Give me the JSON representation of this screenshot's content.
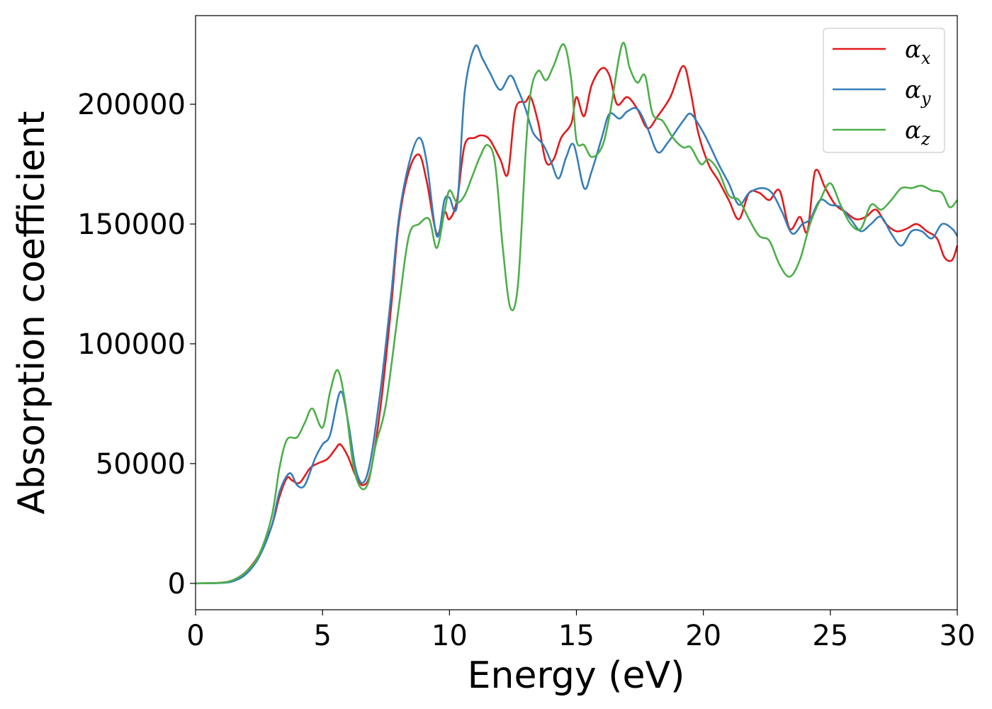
{
  "chart_data": {
    "type": "line",
    "title": "",
    "xlabel": "Energy (eV)",
    "ylabel": "Absorption coefficient",
    "xlim": [
      0,
      30
    ],
    "ylim": [
      -11000,
      237000
    ],
    "xticks": [
      0,
      5,
      10,
      15,
      20,
      25,
      30
    ],
    "xtick_labels": [
      "0",
      "5",
      "10",
      "15",
      "20",
      "25",
      "30"
    ],
    "yticks": [
      0,
      50000,
      100000,
      150000,
      200000
    ],
    "ytick_labels": [
      "0",
      "50000",
      "100000",
      "150000",
      "200000"
    ],
    "grid": false,
    "legend_position": "top-right",
    "series": [
      {
        "name": "αx",
        "legend_base": "α",
        "legend_sub": "x",
        "color": "#e41a1c",
        "x": [
          0,
          1,
          1.5,
          2,
          2.5,
          3,
          3.3,
          3.6,
          3.8,
          4.1,
          4.5,
          4.8,
          5.2,
          5.5,
          5.7,
          6,
          6.3,
          6.6,
          6.9,
          7.3,
          7.7,
          8,
          8.4,
          8.8,
          9.1,
          9.5,
          9.8,
          10,
          10.3,
          10.6,
          11,
          11.3,
          11.6,
          12,
          12.3,
          12.6,
          13,
          13.2,
          13.5,
          13.8,
          14.1,
          14.4,
          14.8,
          15,
          15.3,
          15.6,
          16,
          16.3,
          16.6,
          17,
          17.4,
          17.8,
          18.2,
          18.7,
          19.2,
          19.5,
          19.8,
          20.2,
          20.6,
          21,
          21.4,
          21.8,
          22.2,
          22.6,
          23,
          23.4,
          23.8,
          24.1,
          24.4,
          24.8,
          25.2,
          25.6,
          26,
          26.4,
          26.8,
          27.2,
          27.6,
          28,
          28.4,
          28.8,
          29.2,
          29.5,
          29.8,
          30
        ],
        "y": [
          0,
          300,
          1500,
          5000,
          12000,
          24000,
          36000,
          44000,
          43000,
          42000,
          48000,
          50000,
          52000,
          56000,
          58000,
          53000,
          45000,
          41000,
          47000,
          75000,
          115000,
          150000,
          172000,
          179000,
          168000,
          146000,
          155000,
          152000,
          160000,
          183000,
          186000,
          187000,
          185000,
          177000,
          171000,
          198000,
          201000,
          203000,
          192000,
          176000,
          177000,
          186000,
          192000,
          203000,
          195000,
          208000,
          215000,
          212000,
          200000,
          203000,
          198000,
          190000,
          195000,
          203000,
          216000,
          205000,
          188000,
          175000,
          168000,
          160000,
          152000,
          163000,
          163000,
          160000,
          164000,
          148000,
          153000,
          147000,
          172000,
          165000,
          158000,
          155000,
          152000,
          153000,
          156000,
          150000,
          147000,
          148000,
          150000,
          147000,
          144000,
          136000,
          135000,
          141000
        ]
      },
      {
        "name": "αy",
        "legend_base": "α",
        "legend_sub": "y",
        "color": "#377eb8",
        "x": [
          0,
          1,
          1.5,
          2,
          2.5,
          3,
          3.3,
          3.7,
          4,
          4.3,
          4.7,
          5,
          5.3,
          5.7,
          6,
          6.3,
          6.6,
          6.9,
          7.3,
          7.7,
          8,
          8.4,
          8.8,
          9.1,
          9.5,
          9.8,
          10,
          10.3,
          10.6,
          11,
          11.3,
          11.6,
          12,
          12.4,
          12.7,
          13,
          13.3,
          13.7,
          14,
          14.3,
          14.6,
          14.9,
          15.3,
          15.6,
          16,
          16.3,
          16.7,
          17,
          17.4,
          17.8,
          18.2,
          18.6,
          19.2,
          19.5,
          19.9,
          20.2,
          20.6,
          21,
          21.4,
          21.8,
          22.3,
          22.7,
          23.1,
          23.5,
          23.9,
          24.2,
          24.6,
          25,
          25.4,
          25.8,
          26.2,
          26.6,
          27,
          27.4,
          27.8,
          28.2,
          28.6,
          29,
          29.4,
          29.8,
          30
        ],
        "y": [
          0,
          200,
          1000,
          4000,
          11000,
          24000,
          38000,
          46000,
          41000,
          41000,
          52000,
          58000,
          62000,
          80000,
          68000,
          48000,
          42000,
          52000,
          82000,
          120000,
          152000,
          175000,
          186000,
          176000,
          145000,
          160000,
          161000,
          158000,
          205000,
          224000,
          219000,
          213000,
          206000,
          212000,
          206000,
          198000,
          188000,
          183000,
          176000,
          169000,
          178000,
          183000,
          165000,
          172000,
          186000,
          196000,
          194000,
          197000,
          198000,
          190000,
          180000,
          184000,
          193000,
          196000,
          190000,
          184000,
          175000,
          167000,
          158000,
          163000,
          165000,
          163000,
          155000,
          146000,
          150000,
          152000,
          160000,
          158000,
          157000,
          152000,
          147000,
          150000,
          153000,
          146000,
          141000,
          147000,
          147000,
          144000,
          150000,
          148000,
          145000
        ]
      },
      {
        "name": "αz",
        "legend_base": "α",
        "legend_sub": "z",
        "color": "#4daf4a",
        "x": [
          0,
          1,
          1.5,
          2,
          2.5,
          3,
          3.3,
          3.6,
          4,
          4.3,
          4.6,
          5,
          5.3,
          5.6,
          5.9,
          6.2,
          6.5,
          6.8,
          7.1,
          7.5,
          8,
          8.4,
          8.8,
          9.2,
          9.5,
          9.8,
          10,
          10.3,
          10.6,
          10.9,
          11.2,
          11.5,
          11.8,
          12.1,
          12.4,
          12.7,
          13,
          13.2,
          13.5,
          13.8,
          14.1,
          14.5,
          14.8,
          15,
          15.3,
          15.6,
          16,
          16.3,
          16.8,
          17.1,
          17.4,
          17.7,
          18,
          18.4,
          18.8,
          19.2,
          19.5,
          19.9,
          20.2,
          20.6,
          21,
          21.4,
          21.8,
          22.2,
          22.6,
          23,
          23.4,
          23.8,
          24.2,
          24.6,
          25,
          25.4,
          25.8,
          26.2,
          26.6,
          27,
          27.4,
          27.8,
          28.2,
          28.6,
          29,
          29.4,
          29.7,
          30
        ],
        "y": [
          0,
          300,
          1500,
          5000,
          12000,
          28000,
          48000,
          60000,
          61000,
          67000,
          73000,
          65000,
          80000,
          89000,
          75000,
          50000,
          40000,
          42000,
          58000,
          75000,
          115000,
          145000,
          150000,
          152000,
          140000,
          155000,
          164000,
          159000,
          162000,
          170000,
          178000,
          183000,
          175000,
          140000,
          115000,
          125000,
          180000,
          205000,
          214000,
          210000,
          216000,
          225000,
          210000,
          185000,
          183000,
          178000,
          182000,
          195000,
          225000,
          215000,
          209000,
          212000,
          196000,
          193000,
          186000,
          182000,
          182000,
          175000,
          177000,
          172000,
          162000,
          160000,
          152000,
          145000,
          143000,
          133000,
          128000,
          135000,
          150000,
          160000,
          167000,
          158000,
          150000,
          148000,
          158000,
          156000,
          160000,
          165000,
          165000,
          166000,
          164000,
          163000,
          157000,
          160000
        ]
      }
    ]
  }
}
